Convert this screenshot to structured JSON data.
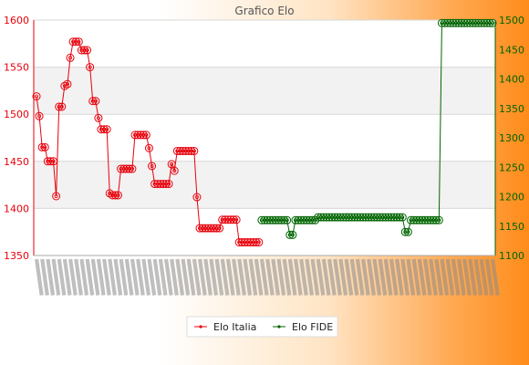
{
  "chart_data": {
    "type": "line",
    "title": "Grafico Elo",
    "xlabel": "",
    "ylabel": "",
    "grid": true,
    "legend_position": "bottom",
    "y_left": {
      "min": 1350,
      "max": 1600,
      "ticks": [
        "1350",
        "1400",
        "1450",
        "1500",
        "1550",
        "1600"
      ],
      "color": "#e8000b"
    },
    "y_right": {
      "min": 1100,
      "max": 1500,
      "ticks": [
        "1100",
        "1150",
        "1200",
        "1250",
        "1300",
        "1350",
        "1400",
        "1450",
        "1500"
      ],
      "color": "#006400"
    },
    "x_tick_labels_note": "dense rotated date labels, unreadable",
    "series": [
      {
        "name": "Elo Italia",
        "axis": "left",
        "color": "#e8000b",
        "values": [
          1519,
          1498,
          1465,
          1465,
          1450,
          1450,
          1450,
          1413,
          1508,
          1508,
          1530,
          1532,
          1560,
          1577,
          1577,
          1577,
          1568,
          1568,
          1568,
          1550,
          1514,
          1514,
          1496,
          1484,
          1484,
          1484,
          1416,
          1414,
          1414,
          1414,
          1442,
          1442,
          1442,
          1442,
          1442,
          1478,
          1478,
          1478,
          1478,
          1478,
          1464,
          1445,
          1426,
          1426,
          1426,
          1426,
          1426,
          1426,
          1447,
          1440,
          1461,
          1461,
          1461,
          1461,
          1461,
          1461,
          1461,
          1412,
          1379,
          1379,
          1379,
          1379,
          1379,
          1379,
          1379,
          1379,
          1388,
          1388,
          1388,
          1388,
          1388,
          1388,
          1364,
          1364,
          1364,
          1364,
          1364,
          1364,
          1364,
          1364,
          null,
          null,
          null,
          null,
          null,
          null,
          null,
          null,
          null,
          null,
          null,
          null,
          null,
          null,
          null,
          null,
          null,
          null,
          null,
          null,
          null,
          null,
          null,
          null,
          null,
          null,
          null,
          null,
          null,
          null,
          null,
          null,
          null,
          null,
          null,
          null,
          null,
          null,
          null,
          null,
          null,
          null,
          null,
          null,
          null,
          null,
          null,
          null,
          null,
          null,
          null,
          null,
          null,
          null,
          null,
          null,
          null,
          null,
          null,
          null,
          null
        ]
      },
      {
        "name": "Elo FIDE",
        "axis": "right",
        "color": "#006400",
        "values": [
          null,
          null,
          null,
          null,
          null,
          null,
          null,
          null,
          null,
          null,
          null,
          null,
          null,
          null,
          null,
          null,
          null,
          null,
          null,
          null,
          null,
          null,
          null,
          null,
          null,
          null,
          null,
          null,
          null,
          null,
          null,
          null,
          null,
          null,
          null,
          null,
          null,
          null,
          null,
          null,
          null,
          null,
          null,
          null,
          null,
          null,
          null,
          null,
          null,
          null,
          null,
          null,
          null,
          null,
          null,
          null,
          null,
          null,
          null,
          null,
          null,
          null,
          null,
          null,
          null,
          null,
          null,
          null,
          null,
          null,
          null,
          null,
          null,
          null,
          null,
          null,
          null,
          null,
          null,
          null,
          1160,
          1160,
          1160,
          1160,
          1160,
          1160,
          1160,
          1160,
          1160,
          1160,
          1135,
          1135,
          1160,
          1160,
          1160,
          1160,
          1160,
          1160,
          1160,
          1160,
          1165,
          1165,
          1165,
          1165,
          1165,
          1165,
          1165,
          1165,
          1165,
          1165,
          1165,
          1165,
          1165,
          1165,
          1165,
          1165,
          1165,
          1165,
          1165,
          1165,
          1165,
          1165,
          1165,
          1165,
          1165,
          1165,
          1165,
          1165,
          1165,
          1165,
          1165,
          1140,
          1140,
          1160,
          1160,
          1160,
          1160,
          1160,
          1160,
          1160,
          1160,
          1160,
          1160,
          1160,
          1495,
          1495,
          1495,
          1495,
          1495,
          1495,
          1495,
          1495,
          1495,
          1495,
          1495,
          1495,
          1495,
          1495,
          1495,
          1495,
          1495,
          1495,
          1495
        ]
      }
    ]
  }
}
